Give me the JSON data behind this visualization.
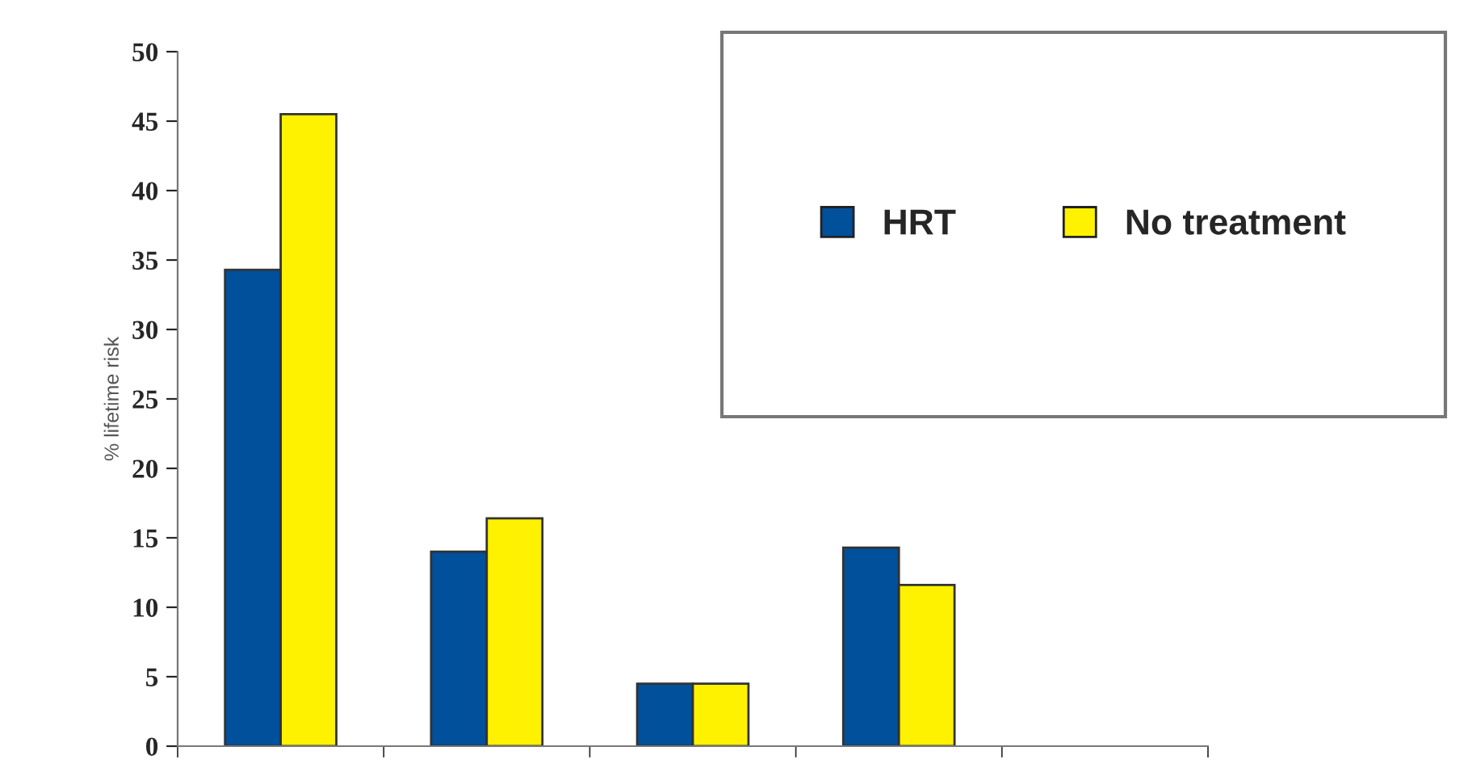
{
  "chart_data": {
    "type": "bar",
    "ylabel": "% lifetime risk",
    "categories": [
      null,
      null,
      null,
      null,
      null
    ],
    "series": [
      {
        "name": "HRT",
        "color": "#00509b",
        "values": [
          34.3,
          14.0,
          4.5,
          14.3,
          null
        ]
      },
      {
        "name": "No treatment",
        "color": "#fff200",
        "values": [
          45.5,
          16.4,
          4.5,
          11.6,
          null
        ]
      }
    ],
    "ylim": [
      0,
      50
    ],
    "yticks": [
      0,
      5,
      10,
      15,
      20,
      25,
      30,
      35,
      40,
      45,
      50
    ],
    "grid": false,
    "legend": "top right"
  }
}
